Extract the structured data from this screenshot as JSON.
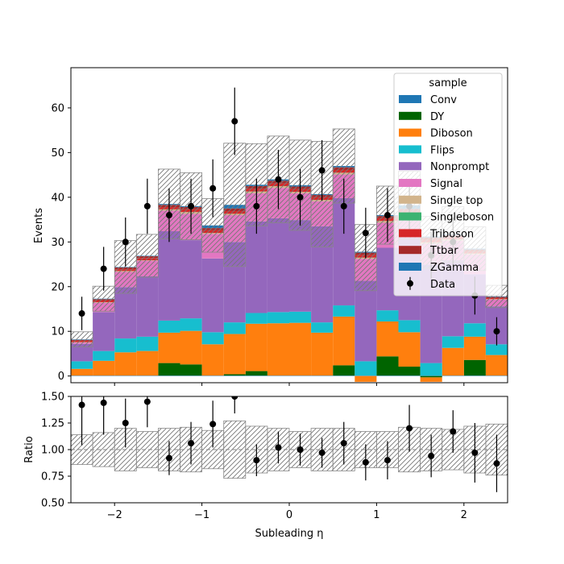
{
  "chart_data": [
    {
      "type": "bar",
      "stacked": true,
      "ylabel": "Events",
      "xlim": [
        -2.5,
        2.5
      ],
      "ylim": [
        -1.5,
        69
      ],
      "yticks": [
        0,
        10,
        20,
        30,
        40,
        50,
        60
      ],
      "legend": {
        "title": "sample",
        "placement": "top-right"
      },
      "bin_edges": [
        -2.5,
        -2.25,
        -2.0,
        -1.75,
        -1.5,
        -1.25,
        -1.0,
        -0.75,
        -0.5,
        -0.25,
        0.0,
        0.25,
        0.5,
        0.75,
        1.0,
        1.25,
        1.5,
        1.75,
        2.0,
        2.25,
        2.5
      ],
      "series": [
        {
          "name": "Conv",
          "color": "#1f77b4",
          "values": [
            0.1,
            0.1,
            0.1,
            0.1,
            0.1,
            0.1,
            0.1,
            0.1,
            0.1,
            0.1,
            0.1,
            0.1,
            0.1,
            0.1,
            0.1,
            0.1,
            0.1,
            0.1,
            0.1,
            0.1
          ]
        },
        {
          "name": "DY",
          "color": "#006400",
          "values": [
            0,
            0,
            0,
            0,
            2.8,
            2.5,
            0,
            0.3,
            1.0,
            0,
            0,
            0,
            2.3,
            0,
            4.3,
            2.0,
            -0.3,
            0,
            3.5,
            0
          ]
        },
        {
          "name": "Diboson",
          "color": "#ff7f0e",
          "values": [
            1.5,
            3.3,
            5.2,
            5.5,
            6.8,
            7.5,
            7.0,
            9.0,
            10.6,
            11.7,
            11.8,
            9.6,
            10.9,
            -1.3,
            7.8,
            7.7,
            -1.0,
            6.2,
            5.2,
            4.6
          ]
        },
        {
          "name": "Flips",
          "color": "#17becf",
          "values": [
            1.7,
            2.2,
            3.1,
            3.2,
            2.7,
            2.8,
            2.7,
            2.6,
            2.4,
            2.5,
            2.5,
            2.3,
            2.5,
            3.2,
            2.5,
            2.7,
            2.8,
            2.6,
            3.0,
            2.4
          ]
        },
        {
          "name": "Nonprompt",
          "color": "#9467bd",
          "values": [
            3.9,
            8.7,
            11.5,
            13.5,
            20.0,
            17.5,
            16.5,
            18.0,
            20.5,
            21.0,
            20.5,
            21.5,
            24.0,
            18.0,
            14.0,
            18.5,
            22.0,
            17.0,
            11.0,
            8.5
          ]
        },
        {
          "name": "Signal",
          "color": "#e377c2",
          "values": [
            0.3,
            2.1,
            3.4,
            3.5,
            4.6,
            5.9,
            5.5,
            6.0,
            6.3,
            6.8,
            6.0,
            5.6,
            5.3,
            4.9,
            5.6,
            5.0,
            4.7,
            4.4,
            4.4,
            1.5
          ]
        },
        {
          "name": "Single top",
          "color": "#d2b48c",
          "values": [
            0.1,
            0.1,
            0.2,
            0.1,
            0.3,
            0.4,
            0.2,
            0.3,
            0.4,
            0.4,
            0.3,
            0.3,
            0.4,
            0.3,
            0.4,
            0.3,
            0.3,
            0.3,
            0.2,
            0.1
          ]
        },
        {
          "name": "Singleboson",
          "color": "#3cb371",
          "values": [
            0,
            0,
            0,
            0,
            0,
            0,
            0,
            0,
            0,
            0,
            0,
            0,
            0,
            0,
            0,
            0,
            0,
            0,
            0,
            0
          ]
        },
        {
          "name": "Triboson",
          "color": "#d62728",
          "values": [
            0.3,
            0.4,
            0.4,
            0.5,
            0.5,
            0.6,
            0.6,
            0.6,
            0.6,
            0.6,
            0.6,
            0.6,
            0.6,
            0.6,
            0.6,
            0.6,
            0.6,
            0.5,
            0.5,
            0.3
          ]
        },
        {
          "name": "Ttbar",
          "color": "#a52a2a",
          "values": [
            0.2,
            0.3,
            0.4,
            0.4,
            0.5,
            0.5,
            0.5,
            0.6,
            0.6,
            0.6,
            0.6,
            0.5,
            0.6,
            0.5,
            0.5,
            0.5,
            0.5,
            0.4,
            0.4,
            0.2
          ]
        },
        {
          "name": "ZGamma",
          "color": "#1f77b4",
          "values": [
            0.1,
            0.1,
            0.1,
            0.1,
            0.2,
            0.2,
            0.6,
            0.8,
            0.3,
            0.3,
            0.3,
            0.2,
            0.3,
            0.2,
            0.2,
            0.8,
            0.2,
            0.2,
            0.2,
            0.1
          ]
        }
      ],
      "mc_uncertainty": [
        1.7,
        2.8,
        5.9,
        4.8,
        7.8,
        7.5,
        6.0,
        13.8,
        9.2,
        9.7,
        10.1,
        11.8,
        8.3,
        7.4,
        6.5,
        7.6,
        5.8,
        6.2,
        4.9,
        2.5
      ],
      "data": {
        "name": "Data",
        "color": "#000000",
        "x": [
          -2.375,
          -2.125,
          -1.875,
          -1.625,
          -1.375,
          -1.125,
          -0.875,
          -0.625,
          -0.375,
          -0.125,
          0.125,
          0.375,
          0.625,
          0.875,
          1.125,
          1.375,
          1.625,
          1.875,
          2.125,
          2.375
        ],
        "y": [
          14,
          24,
          30,
          38,
          36,
          38,
          42,
          57,
          38,
          44,
          40,
          46,
          38,
          32,
          36,
          38,
          27,
          30,
          18,
          10
        ]
      }
    },
    {
      "type": "scatter",
      "xlabel": "Subleading η",
      "ylabel": "Ratio",
      "xlim": [
        -2.5,
        2.5
      ],
      "ylim": [
        0.5,
        1.5
      ],
      "yticks": [
        "0.50",
        "0.75",
        "1.00",
        "1.25",
        "1.50"
      ],
      "xticks": [
        "−2",
        "−1",
        "0",
        "1",
        "2"
      ],
      "xtick_values": [
        -2,
        -1,
        0,
        1,
        2
      ],
      "reference_line": 1.0,
      "x": [
        -2.375,
        -2.125,
        -1.875,
        -1.625,
        -1.375,
        -1.125,
        -0.875,
        -0.625,
        -0.375,
        -0.125,
        0.125,
        0.375,
        0.625,
        0.875,
        1.125,
        1.375,
        1.625,
        1.875,
        2.125,
        2.375
      ],
      "y": [
        1.42,
        1.44,
        1.25,
        1.45,
        0.92,
        1.06,
        1.24,
        1.5,
        0.9,
        1.02,
        1.0,
        0.97,
        1.06,
        0.88,
        0.9,
        1.2,
        0.94,
        1.17,
        0.97,
        0.87
      ],
      "yerr": [
        0.38,
        0.3,
        0.23,
        0.24,
        0.16,
        0.2,
        0.22,
        0.16,
        0.15,
        0.15,
        0.15,
        0.14,
        0.2,
        0.17,
        0.18,
        0.22,
        0.2,
        0.2,
        0.28,
        0.27
      ],
      "band": [
        0.14,
        0.16,
        0.2,
        0.17,
        0.2,
        0.21,
        0.18,
        0.27,
        0.22,
        0.2,
        0.17,
        0.2,
        0.2,
        0.17,
        0.17,
        0.21,
        0.2,
        0.19,
        0.22,
        0.24
      ]
    }
  ]
}
